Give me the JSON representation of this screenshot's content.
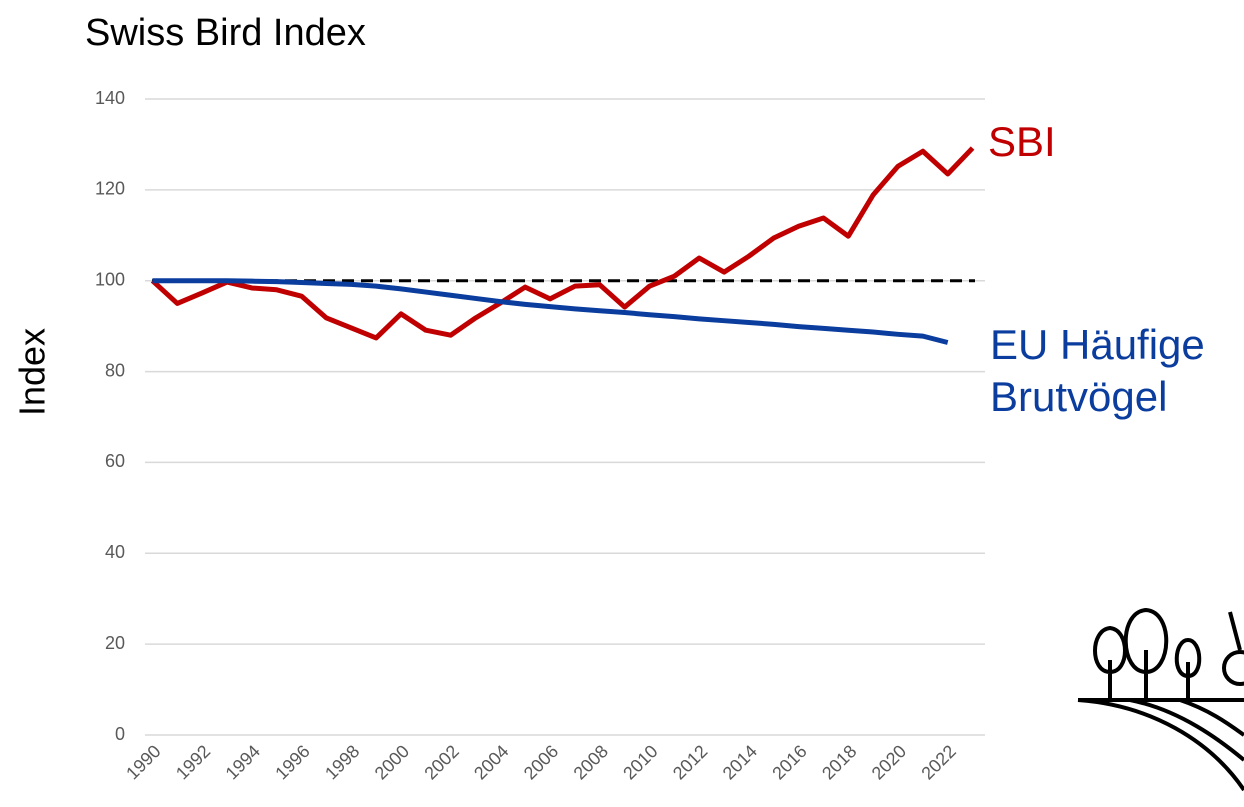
{
  "chart_data": {
    "type": "line",
    "title": "Swiss Bird Index",
    "y_label": "Index",
    "x": [
      1990,
      1991,
      1992,
      1993,
      1994,
      1995,
      1996,
      1997,
      1998,
      1999,
      2000,
      2001,
      2002,
      2003,
      2004,
      2005,
      2006,
      2007,
      2008,
      2009,
      2010,
      2011,
      2012,
      2013,
      2014,
      2015,
      2016,
      2017,
      2018,
      2019,
      2020,
      2021,
      2022,
      2023
    ],
    "series": [
      {
        "name": "SBI",
        "color": "#c00000",
        "values": [
          100,
          95,
          97.3,
          99.7,
          98.4,
          98,
          96.6,
          91.8,
          89.6,
          87.4,
          92.7,
          89.1,
          88,
          91.8,
          95.1,
          98.6,
          96,
          98.8,
          99.1,
          94.2,
          98.8,
          101,
          105,
          101.9,
          105.4,
          109.4,
          112,
          113.8,
          109.8,
          118.9,
          125.2,
          128.5,
          123.5,
          129.2
        ]
      },
      {
        "name": "EU Häufige Brutvögel",
        "color": "#0a3d9e",
        "values": [
          100,
          100,
          100,
          100,
          99.9,
          99.8,
          99.6,
          99.4,
          99.2,
          98.8,
          98.2,
          97.5,
          96.8,
          96.1,
          95.4,
          94.8,
          94.3,
          93.8,
          93.4,
          93,
          92.5,
          92.1,
          91.6,
          91.2,
          90.8,
          90.4,
          89.9,
          89.5,
          89.1,
          88.7,
          88.2,
          87.8,
          86.4,
          null
        ]
      }
    ],
    "hline": 100,
    "xlim": [
      1989.7,
      2023.5
    ],
    "ylim": [
      0,
      140
    ],
    "xticks": [
      1990,
      1992,
      1994,
      1996,
      1998,
      2000,
      2002,
      2004,
      2006,
      2008,
      2010,
      2012,
      2014,
      2016,
      2018,
      2020,
      2022
    ],
    "yticks": [
      0,
      20,
      40,
      60,
      80,
      100,
      120,
      140
    ],
    "grid": true
  }
}
